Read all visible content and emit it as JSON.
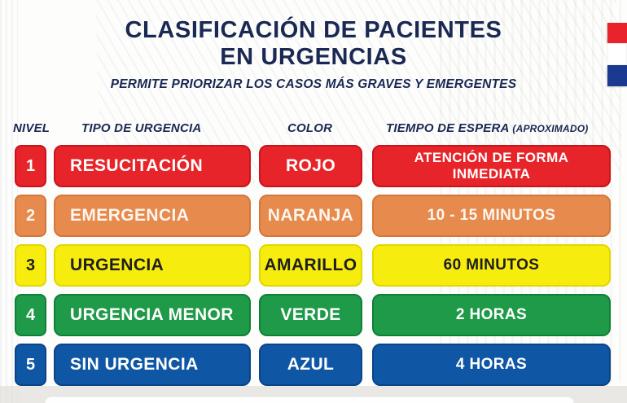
{
  "poster": {
    "title_line1": "CLASIFICACIÓN DE PACIENTES",
    "title_line2": "EN URGENCIAS",
    "subtitle": "PERMITE PRIORIZAR LOS CASOS MÁS GRAVES Y EMERGENTES",
    "title_color": "#1A2853"
  },
  "flag": {
    "name": "flag-paraguay-partial",
    "red": "#E8232B",
    "white": "#FFFFFF",
    "blue": "#1B3A8F"
  },
  "table": {
    "headers": {
      "nivel": "NIVEL",
      "tipo": "TIPO DE URGENCIA",
      "color": "COLOR",
      "tiempo": "TIEMPO DE ESPERA",
      "tiempo_note": "(APROXIMADO)"
    },
    "rows": [
      {
        "nivel": "1",
        "tipo": "RESUCITACIÓN",
        "color": "ROJO",
        "tiempo": "ATENCIÓN DE FORMA INMEDIATA",
        "fill": "#E72429",
        "border": "#C9141B",
        "text": "#FFFFFF"
      },
      {
        "nivel": "2",
        "tipo": "EMERGENCIA",
        "color": "NARANJA",
        "tiempo": "10 - 15 MINUTOS",
        "fill": "#E78A4D",
        "border": "#D5773A",
        "text": "#FDF6EE"
      },
      {
        "nivel": "3",
        "tipo": "URGENCIA",
        "color": "AMARILLO",
        "tiempo": "60 MINUTOS",
        "fill": "#F6EC0E",
        "border": "#E2D600",
        "text": "#1E1E1E"
      },
      {
        "nivel": "4",
        "tipo": "URGENCIA MENOR",
        "color": "VERDE",
        "tiempo": "2 HORAS",
        "fill": "#1F9A48",
        "border": "#0F8038",
        "text": "#FFFFFF"
      },
      {
        "nivel": "5",
        "tipo": "SIN URGENCIA",
        "color": "AZUL",
        "tiempo": "4 HORAS",
        "fill": "#0F57A4",
        "border": "#0A4488",
        "text": "#FFFFFF"
      }
    ]
  },
  "chart_data": {
    "type": "table",
    "title": "CLASIFICACIÓN DE PACIENTES EN URGENCIAS",
    "subtitle": "PERMITE PRIORIZAR LOS CASOS MÁS GRAVES Y EMERGENTES",
    "columns": [
      "NIVEL",
      "TIPO DE URGENCIA",
      "COLOR",
      "TIEMPO DE ESPERA (APROXIMADO)"
    ],
    "rows": [
      [
        "1",
        "RESUCITACIÓN",
        "ROJO",
        "ATENCIÓN DE FORMA INMEDIATA"
      ],
      [
        "2",
        "EMERGENCIA",
        "NARANJA",
        "10 - 15 MINUTOS"
      ],
      [
        "3",
        "URGENCIA",
        "AMARILLO",
        "60 MINUTOS"
      ],
      [
        "4",
        "URGENCIA MENOR",
        "VERDE",
        "2 HORAS"
      ],
      [
        "5",
        "SIN URGENCIA",
        "AZUL",
        "4 HORAS"
      ]
    ],
    "row_colors": [
      "#E72429",
      "#E78A4D",
      "#F6EC0E",
      "#1F9A48",
      "#0F57A4"
    ],
    "legend_position": "none",
    "grid": false
  }
}
